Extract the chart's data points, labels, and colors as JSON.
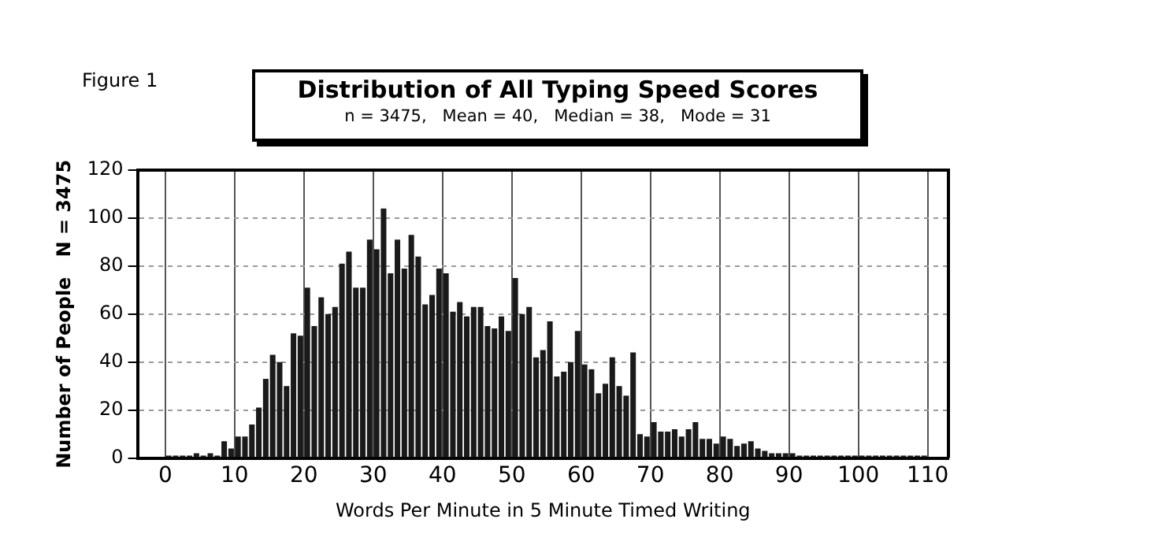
{
  "chart_data": {
    "type": "histogram",
    "title": "Distribution of All Typing Speed Scores",
    "subtitle": "n = 3475,   Mean = 40,   Median = 38,   Mode = 31",
    "annotations": [
      "Figure 1"
    ],
    "xlabel": "Words Per Minute in 5 Minute Timed Writing",
    "ylabel": "Number of People   N = 3475",
    "bins": [
      0,
      1,
      2,
      3,
      4,
      5,
      6,
      7,
      8,
      9,
      10,
      11,
      12,
      13,
      14,
      15,
      16,
      17,
      18,
      19,
      20,
      21,
      22,
      23,
      24,
      25,
      26,
      27,
      28,
      29,
      30,
      31,
      32,
      33,
      34,
      35,
      36,
      37,
      38,
      39,
      40,
      41,
      42,
      43,
      44,
      45,
      46,
      47,
      48,
      49,
      50,
      51,
      52,
      53,
      54,
      55,
      56,
      57,
      58,
      59,
      60,
      61,
      62,
      63,
      64,
      65,
      66,
      67,
      68,
      69,
      70,
      71,
      72,
      73,
      74,
      75,
      76,
      77,
      78,
      79,
      80,
      81,
      82,
      83,
      84,
      85,
      86,
      87,
      88,
      89,
      90,
      91,
      92,
      93,
      94,
      95,
      96,
      97,
      98,
      99,
      100,
      101,
      102,
      103,
      104,
      105,
      106,
      107,
      108,
      109,
      110
    ],
    "values": [
      1,
      1,
      1,
      1,
      2,
      1,
      2,
      1,
      7,
      4,
      9,
      9,
      14,
      21,
      33,
      43,
      40,
      30,
      52,
      51,
      71,
      55,
      67,
      60,
      63,
      81,
      86,
      71,
      71,
      91,
      87,
      104,
      77,
      91,
      79,
      93,
      84,
      64,
      68,
      79,
      77,
      61,
      65,
      59,
      63,
      63,
      55,
      54,
      59,
      53,
      75,
      60,
      63,
      42,
      45,
      57,
      34,
      36,
      40,
      53,
      39,
      37,
      27,
      31,
      42,
      30,
      26,
      44,
      10,
      9,
      15,
      11,
      11,
      12,
      9,
      12,
      15,
      8,
      8,
      6,
      9,
      8,
      5,
      6,
      7,
      4,
      3,
      2,
      2,
      2,
      2,
      1,
      1,
      1,
      1,
      1,
      1,
      1,
      1,
      1,
      1,
      1,
      1,
      1,
      1,
      1,
      1,
      1,
      1,
      1
    ],
    "color": "#1a1a1a",
    "xlim": [
      -4,
      113
    ],
    "xticks": [
      0,
      10,
      20,
      30,
      40,
      50,
      60,
      70,
      80,
      90,
      100,
      110
    ],
    "ylim": [
      0,
      120
    ],
    "yticks": [
      0,
      20,
      40,
      60,
      80,
      100,
      120
    ],
    "grid": true,
    "legend": false
  }
}
